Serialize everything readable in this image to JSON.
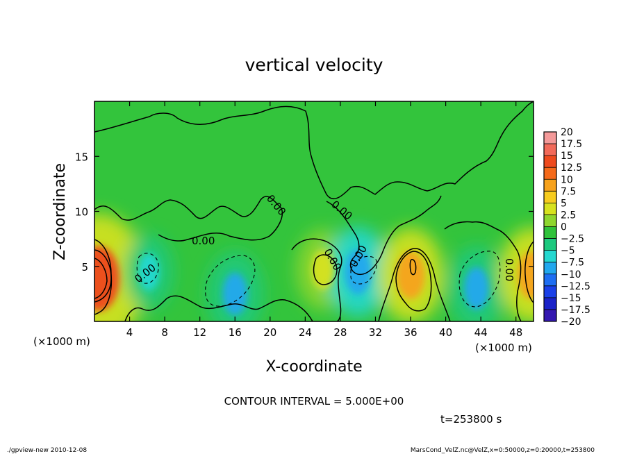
{
  "chart_data": {
    "type": "heatmap",
    "title": "vertical velocity",
    "xlabel": "X-coordinate",
    "ylabel": "Z-coordinate",
    "x_unit": "(×1000 m)",
    "y_unit": "(×1000 m)",
    "xlim": [
      0,
      50
    ],
    "ylim": [
      0,
      20
    ],
    "xticks": [
      4,
      8,
      12,
      16,
      20,
      24,
      28,
      32,
      36,
      40,
      44,
      48
    ],
    "yticks": [
      5,
      10,
      15
    ],
    "colorbar": {
      "levels": [
        20,
        17.5,
        15,
        12.5,
        10,
        7.5,
        5,
        2.5,
        0,
        -2.5,
        -5,
        -7.5,
        -10,
        -12.5,
        -15,
        -17.5,
        -20
      ],
      "colors": [
        "#f49a9a",
        "#f26a5a",
        "#ee4a1e",
        "#f56a1a",
        "#f7a21c",
        "#f7cc1e",
        "#d7e21e",
        "#8fd62e",
        "#2fc23a",
        "#1cc97e",
        "#24d8d0",
        "#22a8ee",
        "#1e6ef2",
        "#1a40e8",
        "#1a22c8",
        "#3418b0",
        "#5a18a0"
      ],
      "labels": [
        "20",
        "17.5",
        "15",
        "12.5",
        "10",
        "7.5",
        "5",
        "2.5",
        "0",
        "−2.5",
        "−5",
        "−7.5",
        "−10",
        "−12.5",
        "−15",
        "−17.5",
        "−20"
      ]
    },
    "features": [
      {
        "x": 0.5,
        "z": 3.9,
        "w": 16,
        "kind": "updraft"
      },
      {
        "x": 6.2,
        "z": 4.5,
        "w": -5,
        "kind": "downdraft"
      },
      {
        "x": 16.0,
        "z": 2.5,
        "w": -7,
        "kind": "downdraft"
      },
      {
        "x": 26.0,
        "z": 4.7,
        "w": 6,
        "kind": "updraft"
      },
      {
        "x": 30.0,
        "z": 4.5,
        "w": -8,
        "kind": "downdraft"
      },
      {
        "x": 36.0,
        "z": 4.2,
        "w": 9,
        "kind": "updraft"
      },
      {
        "x": 43.5,
        "z": 3.0,
        "w": -7,
        "kind": "downdraft"
      },
      {
        "x": 49.8,
        "z": 4.2,
        "w": 9,
        "kind": "updraft"
      }
    ],
    "contour_labels": [
      "0.00",
      "0.00",
      "0.00",
      "0.00",
      "0.00",
      "0.00",
      "0.00"
    ]
  },
  "contour_interval": "CONTOUR INTERVAL = 5.000E+00",
  "time": "t=253800 s",
  "footer_left": "./gpview-new   2010-12-08",
  "footer_right": "MarsCond_VelZ.nc@VelZ,x=0:50000,z=0:20000,t=253800"
}
